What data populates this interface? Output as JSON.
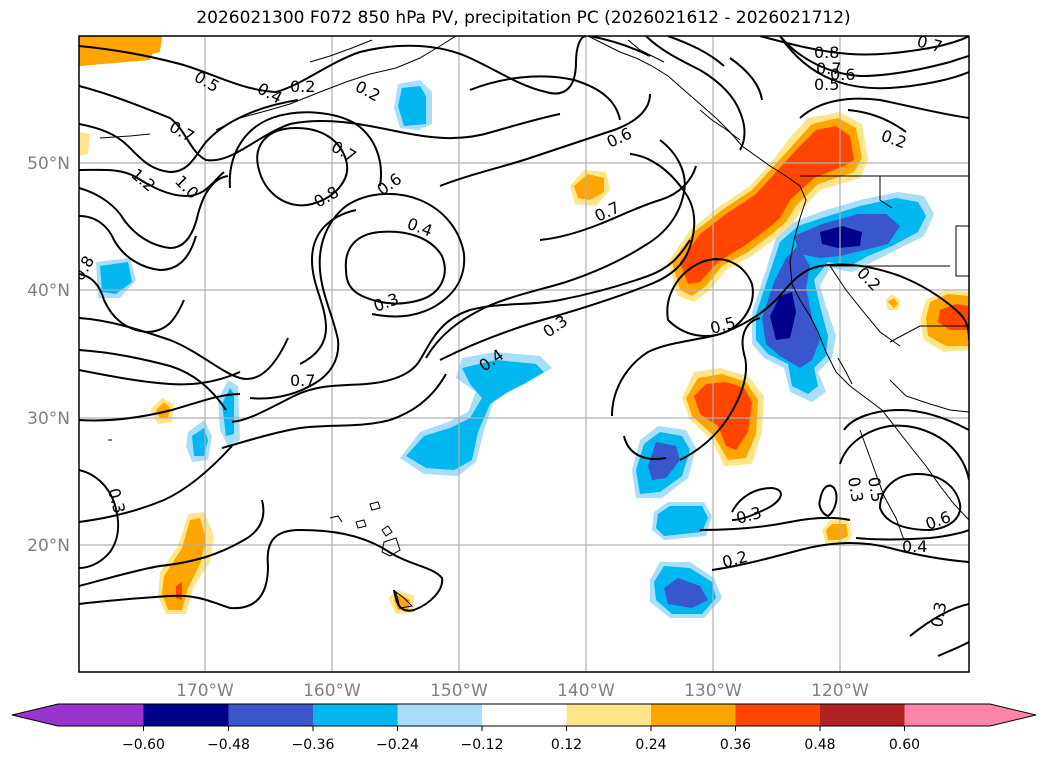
{
  "title": "2026021300 F072 850 hPa PV, precipitation PC (2026021612 - 2026021712)",
  "map": {
    "lat_labels": [
      "50°N",
      "40°N",
      "30°N",
      "20°N"
    ],
    "lon_labels": [
      "170°W",
      "160°W",
      "150°W",
      "140°W",
      "130°W",
      "120°W"
    ],
    "contour_labels": [
      "0.5",
      "0.4",
      "0.2",
      "0.2",
      "0.7",
      "0.7",
      "1.2",
      "1.0",
      "0.8",
      "0.8",
      "0.6",
      "0.4",
      "0.3",
      "0.7",
      "0.6",
      "0.7",
      "0.4",
      "0.3",
      "0.5",
      "0.8",
      "0.7",
      "0.6",
      "0.5",
      "0.7",
      "0.2",
      "0.2",
      "0.3",
      "0.3",
      "0.2",
      "0.3",
      "0.5",
      "0.6",
      "0.4",
      "0.3"
    ]
  },
  "colorbar": {
    "tick_labels": [
      "−0.60",
      "−0.48",
      "−0.36",
      "−0.24",
      "−0.12",
      "0.12",
      "0.24",
      "0.36",
      "0.48",
      "0.60"
    ],
    "colors": [
      "#9933cc",
      "#00008b",
      "#3a56cc",
      "#00b7f0",
      "#a8defa",
      "#ffffff",
      "#fde68a",
      "#ffa500",
      "#ff4500",
      "#b22222",
      "#ff85a8"
    ]
  }
}
